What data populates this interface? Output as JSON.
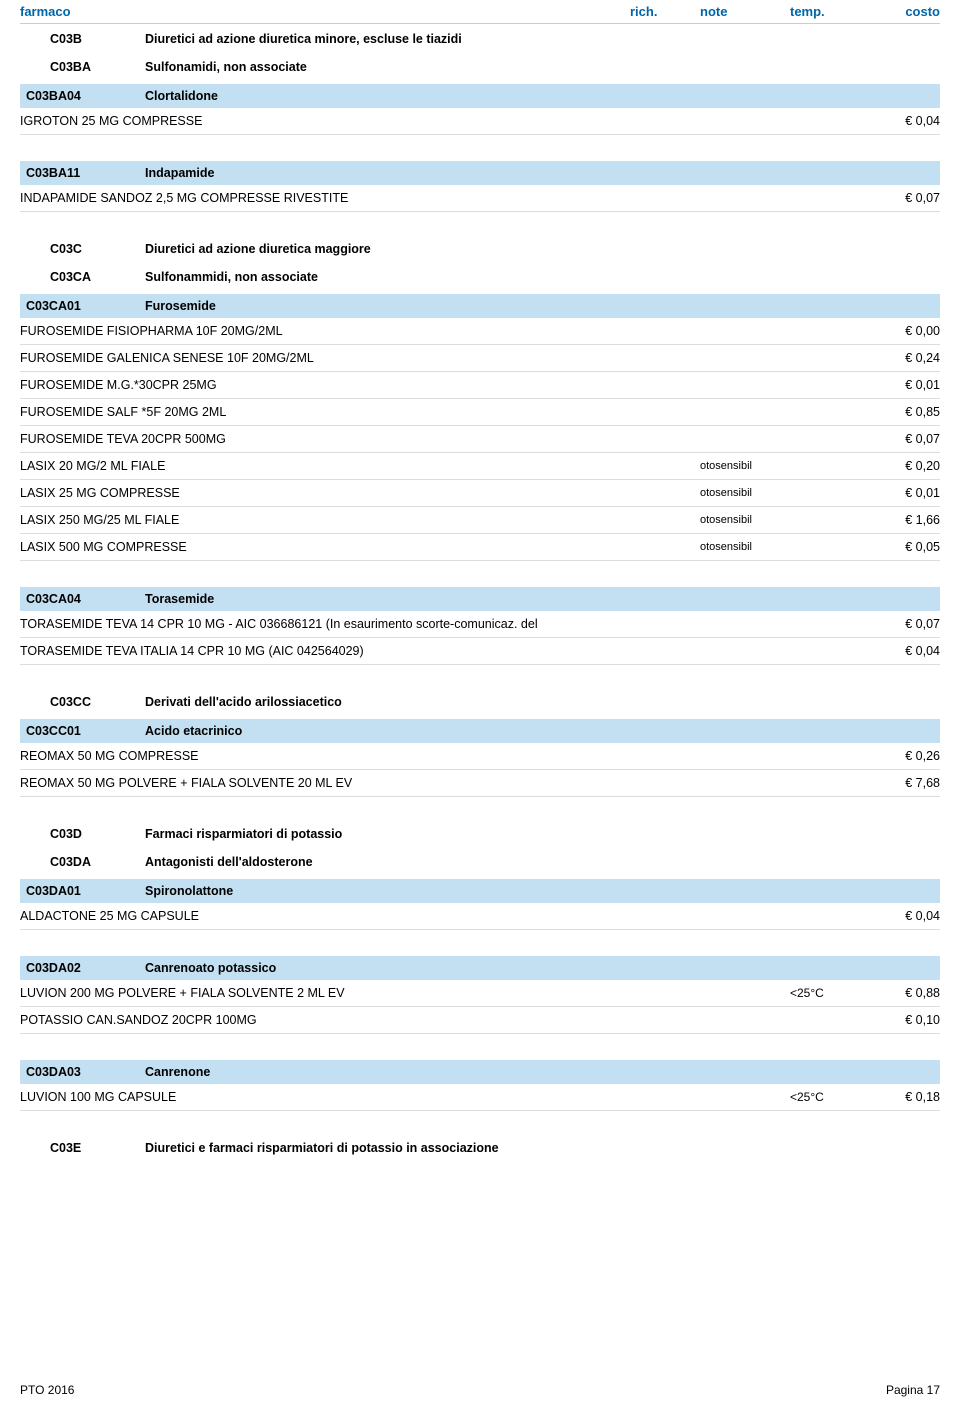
{
  "header": {
    "col_farmaco": "farmaco",
    "col_rich": "rich.",
    "col_note": "note",
    "col_temp": "temp.",
    "col_costo": "costo"
  },
  "footer": {
    "left": "PTO 2016",
    "right": "Pagina 17"
  },
  "sections": [
    {
      "groups": [
        {
          "code": "C03B",
          "name": "Diuretici ad azione diuretica minore, escluse le tiazidi"
        },
        {
          "code": "C03BA",
          "name": "Sulfonamidi, non associate"
        }
      ],
      "atc": {
        "code": "C03BA04",
        "name": "Clortalidone"
      },
      "products": [
        {
          "name": "IGROTON 25 MG COMPRESSE",
          "rich": "",
          "note": "",
          "temp": "",
          "costo": "€ 0,04"
        }
      ]
    },
    {
      "groups": [],
      "atc": {
        "code": "C03BA11",
        "name": "Indapamide"
      },
      "products": [
        {
          "name": "INDAPAMIDE SANDOZ 2,5 MG COMPRESSE RIVESTITE",
          "rich": "",
          "note": "",
          "temp": "",
          "costo": "€ 0,07"
        }
      ]
    },
    {
      "groups": [
        {
          "code": "C03C",
          "name": "Diuretici ad azione diuretica maggiore"
        },
        {
          "code": "C03CA",
          "name": "Sulfonammidi, non associate"
        }
      ],
      "atc": {
        "code": "C03CA01",
        "name": "Furosemide"
      },
      "products": [
        {
          "name": "FUROSEMIDE FISIOPHARMA 10F 20MG/2ML",
          "rich": "",
          "note": "",
          "temp": "",
          "costo": "€ 0,00"
        },
        {
          "name": "FUROSEMIDE GALENICA SENESE 10F 20MG/2ML",
          "rich": "",
          "note": "",
          "temp": "",
          "costo": "€ 0,24"
        },
        {
          "name": "FUROSEMIDE M.G.*30CPR 25MG",
          "rich": "",
          "note": "",
          "temp": "",
          "costo": "€ 0,01"
        },
        {
          "name": "FUROSEMIDE SALF *5F 20MG 2ML",
          "rich": "",
          "note": "",
          "temp": "",
          "costo": "€ 0,85"
        },
        {
          "name": "FUROSEMIDE TEVA 20CPR 500MG",
          "rich": "",
          "note": "",
          "temp": "",
          "costo": "€ 0,07"
        },
        {
          "name": "LASIX 20 MG/2 ML FIALE",
          "rich": "",
          "note": "otosensibil",
          "temp": "",
          "costo": "€ 0,20"
        },
        {
          "name": "LASIX 25 MG COMPRESSE",
          "rich": "",
          "note": "otosensibil",
          "temp": "",
          "costo": "€ 0,01"
        },
        {
          "name": "LASIX 250 MG/25 ML FIALE",
          "rich": "",
          "note": "otosensibil",
          "temp": "",
          "costo": "€ 1,66"
        },
        {
          "name": "LASIX 500 MG COMPRESSE",
          "rich": "",
          "note": "otosensibil",
          "temp": "",
          "costo": "€ 0,05"
        }
      ]
    },
    {
      "groups": [],
      "atc": {
        "code": "C03CA04",
        "name": "Torasemide"
      },
      "products": [
        {
          "name": "TORASEMIDE TEVA 14 CPR 10 MG - AIC 036686121 (In esaurimento scorte-comunicaz. del",
          "rich": "",
          "note": "",
          "temp": "",
          "costo": "€ 0,07"
        },
        {
          "name": "TORASEMIDE TEVA ITALIA 14 CPR 10 MG (AIC 042564029)",
          "rich": "",
          "note": "",
          "temp": "",
          "costo": "€ 0,04"
        }
      ]
    },
    {
      "groups": [
        {
          "code": "C03CC",
          "name": "Derivati dell'acido arilossiacetico"
        }
      ],
      "atc": {
        "code": "C03CC01",
        "name": "Acido etacrinico"
      },
      "products": [
        {
          "name": "REOMAX 50 MG COMPRESSE",
          "rich": "",
          "note": "",
          "temp": "",
          "costo": "€ 0,26"
        },
        {
          "name": "REOMAX 50 MG POLVERE + FIALA SOLVENTE 20 ML EV",
          "rich": "",
          "note": "",
          "temp": "",
          "costo": "€ 7,68"
        }
      ]
    },
    {
      "groups": [
        {
          "code": "C03D",
          "name": "Farmaci risparmiatori di potassio"
        },
        {
          "code": "C03DA",
          "name": "Antagonisti dell'aldosterone"
        }
      ],
      "atc": {
        "code": "C03DA01",
        "name": "Spironolattone"
      },
      "products": [
        {
          "name": "ALDACTONE 25 MG CAPSULE",
          "rich": "",
          "note": "",
          "temp": "",
          "costo": "€ 0,04"
        }
      ]
    },
    {
      "groups": [],
      "atc": {
        "code": "C03DA02",
        "name": "Canrenoato potassico"
      },
      "products": [
        {
          "name": "LUVION 200 MG POLVERE + FIALA SOLVENTE 2 ML EV",
          "rich": "",
          "note": "",
          "temp": "<25°C",
          "costo": "€ 0,88"
        },
        {
          "name": "POTASSIO CAN.SANDOZ 20CPR 100MG",
          "rich": "",
          "note": "",
          "temp": "",
          "costo": "€ 0,10"
        }
      ]
    },
    {
      "groups": [],
      "atc": {
        "code": "C03DA03",
        "name": "Canrenone"
      },
      "products": [
        {
          "name": "LUVION 100 MG CAPSULE",
          "rich": "",
          "note": "",
          "temp": "<25°C",
          "costo": "€ 0,18"
        }
      ]
    },
    {
      "groups": [
        {
          "code": "C03E",
          "name": "Diuretici e farmaci risparmiatori di potassio in associazione"
        }
      ],
      "atc": null,
      "products": []
    }
  ]
}
